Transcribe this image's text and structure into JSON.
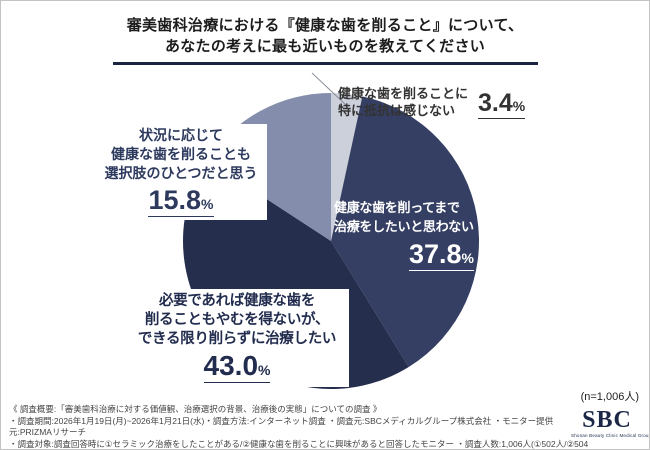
{
  "title": {
    "line1": "審美歯科治療における『健康な歯を削ること』について、",
    "line2": "あなたの考えに最も近いものを教えてください"
  },
  "chart_data": {
    "type": "pie",
    "title": "審美歯科治療における『健康な歯を削ること』について、あなたの考えに最も近いものを教えてください",
    "n_label": "(n=1,006人)",
    "start_angle_deg": -90,
    "direction": "clockwise",
    "segments": [
      {
        "label": "健康な歯を削ることに特に抵抗は感じない",
        "value": 3.4,
        "color": "#ccd0da"
      },
      {
        "label": "健康な歯を削ってまで治療をしたいと思わない",
        "value": 37.8,
        "color": "#353f63"
      },
      {
        "label": "必要であれば健康な歯を削ることもやむを得ないが、できる限り削らずに治療したい",
        "value": 43.0,
        "color": "#262e4d"
      },
      {
        "label": "状況に応じて健康な歯を削ることも選択肢のひとつだと思う",
        "value": 15.8,
        "color": "#848dab"
      }
    ]
  },
  "labels": {
    "no_resistance": {
      "lines": [
        "健康な歯を削ることに",
        "特に抵抗は感じない"
      ],
      "value": "3.4",
      "unit": "%"
    },
    "dont_want": {
      "lines": [
        "健康な歯を削ってまで",
        "治療をしたいと思わない"
      ],
      "value": "37.8",
      "unit": "%"
    },
    "unavoidable": {
      "lines": [
        "必要であれば健康な歯を",
        "削ることもやむを得ないが、",
        "できる限り削らずに治療したい"
      ],
      "value": "43.0",
      "unit": "%"
    },
    "option": {
      "lines": [
        "状況に応じて",
        "健康な歯を削ることも",
        "選択肢のひとつだと思う"
      ],
      "value": "15.8",
      "unit": "%"
    }
  },
  "footer": {
    "line1": "《 調査概要:「審美歯科治療に対する価値観、治療選択の背景、治療後の実態」についての調査 》",
    "line2": "・調査期間:2026年1月19日(月)~2026年1月21日(水)・調査方法:インターネット調査 ・調査元:SBCメディカルグループ株式会社 ・モニター提供元:PRIZMAリサーチ",
    "line3": "・調査対象:調査回答時に①セラミック治療をしたことがある/②健康な歯を削ることに興味があると回答したモニター ・調査人数:1,006人(①502人/②504人)"
  },
  "logo": {
    "text": "SBC",
    "tagline": "Shonan Beauty Clinic Medical Group"
  }
}
